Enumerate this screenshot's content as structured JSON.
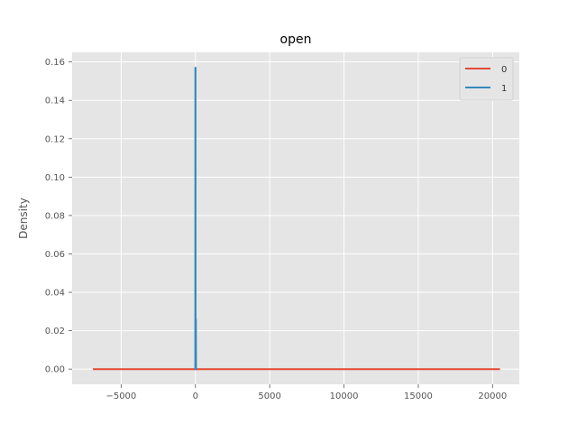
{
  "chart_data": {
    "type": "line",
    "title": "open",
    "xlabel": "",
    "ylabel": "Density",
    "xlim": [
      -8300,
      21800
    ],
    "ylim": [
      -0.0079,
      0.165
    ],
    "x_ticks": [
      -5000,
      0,
      5000,
      10000,
      15000,
      20000
    ],
    "x_tick_labels": [
      "−5000",
      "0",
      "5000",
      "10000",
      "15000",
      "20000"
    ],
    "y_ticks": [
      0.0,
      0.02,
      0.04,
      0.06,
      0.08,
      0.1,
      0.12,
      0.14,
      0.16
    ],
    "y_tick_labels": [
      "0.00",
      "0.02",
      "0.04",
      "0.06",
      "0.08",
      "0.10",
      "0.12",
      "0.14",
      "0.16"
    ],
    "grid": true,
    "legend_position": "top-right",
    "series": [
      {
        "name": "0",
        "color": "#E24A33",
        "x": [
          -6900,
          -3000,
          0,
          5000,
          10000,
          15000,
          20500
        ],
        "y": [
          0.0,
          0.0,
          0.0,
          0.0,
          0.0,
          0.0,
          0.0
        ]
      },
      {
        "name": "1",
        "color": "#348ABD",
        "x": [
          -20,
          -10,
          -5,
          0,
          5,
          10,
          15,
          20,
          30,
          40,
          50,
          60,
          70
        ],
        "y": [
          0.0,
          0.0,
          0.157,
          0.157,
          0.157,
          0.0,
          0.0,
          0.026,
          0.026,
          0.0,
          0.0,
          0.0,
          0.0
        ]
      }
    ]
  }
}
